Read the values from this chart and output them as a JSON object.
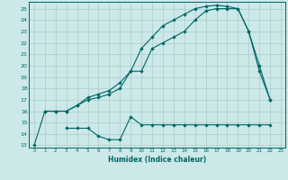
{
  "xlabel": "Humidex (Indice chaleur)",
  "bg_color": "#cce8e8",
  "line_color": "#006666",
  "grid_color": "#aacccc",
  "xlim": [
    -0.5,
    23.4
  ],
  "ylim": [
    12.8,
    25.6
  ],
  "yticks": [
    13,
    14,
    15,
    16,
    17,
    18,
    19,
    20,
    21,
    22,
    23,
    24,
    25
  ],
  "xticks": [
    0,
    1,
    2,
    3,
    4,
    5,
    6,
    7,
    8,
    9,
    10,
    11,
    12,
    13,
    14,
    15,
    16,
    17,
    18,
    19,
    20,
    21,
    22,
    23
  ],
  "line1_x": [
    0,
    1,
    2,
    3,
    4,
    5,
    6,
    7,
    8,
    9,
    10,
    11,
    12,
    13,
    14,
    15,
    16,
    17,
    18,
    19,
    20,
    21,
    22
  ],
  "line1_y": [
    13,
    16,
    16,
    16,
    16.5,
    17.2,
    17.5,
    17.8,
    18.5,
    19.5,
    21.5,
    22.5,
    23.5,
    24.0,
    24.5,
    25.0,
    25.2,
    25.3,
    25.2,
    25.0,
    23.0,
    19.5,
    17.0
  ],
  "line2_x": [
    1,
    2,
    3,
    4,
    5,
    6,
    7,
    8,
    9,
    10,
    11,
    12,
    13,
    14,
    15,
    16,
    17,
    18,
    19,
    20,
    21,
    22
  ],
  "line2_y": [
    16,
    16,
    16,
    16.5,
    17.0,
    17.2,
    17.5,
    18.0,
    19.5,
    19.5,
    21.5,
    22.0,
    22.5,
    23.0,
    24.0,
    24.8,
    25.0,
    25.0,
    25.0,
    23.0,
    20.0,
    17.0
  ],
  "line3_x": [
    3,
    4,
    5,
    6,
    7,
    8,
    9,
    10,
    11,
    12,
    13,
    14,
    15,
    16,
    17,
    18,
    19,
    20,
    21,
    22
  ],
  "line3_y": [
    14.5,
    14.5,
    14.5,
    13.8,
    13.5,
    13.5,
    15.5,
    14.8,
    14.8,
    14.8,
    14.8,
    14.8,
    14.8,
    14.8,
    14.8,
    14.8,
    14.8,
    14.8,
    14.8,
    14.8
  ]
}
